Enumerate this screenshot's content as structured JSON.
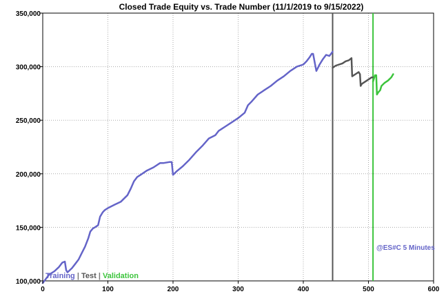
{
  "chart_data": {
    "type": "line",
    "title": "Closed Trade Equity vs. Trade Number (11/1/2019 to 9/15/2022)",
    "xlabel": "",
    "ylabel": "",
    "xlim": [
      0,
      600
    ],
    "ylim": [
      100000,
      350000
    ],
    "x_ticks": [
      0,
      100,
      200,
      300,
      400,
      500,
      600
    ],
    "x_tick_labels": [
      "0",
      "100",
      "200",
      "300",
      "400",
      "500",
      "600"
    ],
    "y_ticks": [
      100000,
      150000,
      200000,
      250000,
      300000,
      350000
    ],
    "y_tick_labels": [
      "100,000",
      "150,000",
      "200,000",
      "250,000",
      "300,000",
      "350,000"
    ],
    "grid": true,
    "legend_placement": "bottom-left",
    "legend": {
      "training": "Training",
      "sep1": " | ",
      "test": "Test",
      "sep2": " | ",
      "validation": "Validation"
    },
    "annotation": "@ES#C 5 Minutes",
    "vertical_lines": [
      {
        "x": 445,
        "color": "#555555"
      },
      {
        "x": 507,
        "color": "#3cc43c"
      }
    ],
    "series": [
      {
        "name": "Training",
        "color": "#6464c8",
        "x": [
          0,
          5,
          10,
          18,
          25,
          30,
          34,
          36,
          38,
          45,
          50,
          55,
          60,
          65,
          70,
          73,
          77,
          80,
          85,
          88,
          90,
          92,
          95,
          100,
          110,
          120,
          130,
          135,
          140,
          145,
          150,
          160,
          170,
          180,
          185,
          195,
          198,
          200,
          205,
          215,
          225,
          235,
          245,
          255,
          265,
          270,
          275,
          280,
          290,
          300,
          310,
          315,
          320,
          330,
          340,
          350,
          360,
          370,
          380,
          390,
          400,
          405,
          410,
          413,
          415,
          420,
          425,
          430,
          435,
          440,
          445
        ],
        "y": [
          98000,
          102000,
          106000,
          109000,
          113000,
          117000,
          118000,
          110000,
          108000,
          112000,
          116000,
          120000,
          126000,
          132000,
          140000,
          146000,
          149000,
          150000,
          152000,
          160000,
          162000,
          164000,
          166000,
          168000,
          171000,
          174000,
          180000,
          186000,
          193000,
          197000,
          199000,
          203000,
          206000,
          210000,
          210000,
          211000,
          211000,
          199000,
          202000,
          207000,
          213000,
          220000,
          226000,
          233000,
          236000,
          240000,
          242000,
          244000,
          248000,
          252000,
          257000,
          264000,
          267000,
          274000,
          278000,
          282000,
          287000,
          291000,
          296000,
          300000,
          302000,
          305000,
          309000,
          312000,
          312000,
          296000,
          302000,
          307000,
          311000,
          310000,
          314000
        ]
      },
      {
        "name": "Test",
        "color": "#555555",
        "x": [
          445,
          450,
          460,
          465,
          470,
          474,
          475,
          480,
          485,
          487,
          488,
          490,
          495,
          500,
          505,
          507
        ],
        "y": [
          299000,
          301000,
          303000,
          305000,
          306000,
          308000,
          291000,
          293000,
          295000,
          293000,
          282000,
          284000,
          286000,
          288000,
          290000,
          290000
        ]
      },
      {
        "name": "Validation",
        "color": "#3cc43c",
        "x": [
          507,
          510,
          512,
          513,
          515,
          518,
          520,
          525,
          530,
          535,
          538
        ],
        "y": [
          286000,
          292000,
          292000,
          274000,
          276000,
          278000,
          282000,
          285000,
          287000,
          290000,
          293000
        ]
      }
    ]
  }
}
